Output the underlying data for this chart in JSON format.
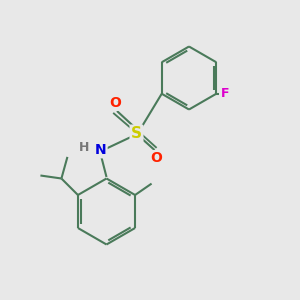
{
  "background_color": "#e8e8e8",
  "bond_color": "#4a7a5a",
  "bond_width": 1.5,
  "S_color": "#cccc00",
  "N_color": "#0000dd",
  "O_color": "#ff2200",
  "F_color": "#dd00cc",
  "H_color": "#777777",
  "figsize": [
    3.0,
    3.0
  ],
  "dpi": 100,
  "xlim": [
    0,
    10
  ],
  "ylim": [
    0,
    10
  ]
}
